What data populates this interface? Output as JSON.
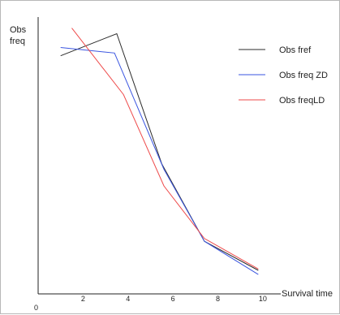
{
  "chart_data": {
    "type": "line",
    "ylabel_line1": "Obs",
    "ylabel_line2": "freq",
    "xlabel": "Survival time",
    "origin_label": "0",
    "x_ticks": [
      2,
      4,
      6,
      8,
      10
    ],
    "xlim": [
      0,
      10.8
    ],
    "ylim": [
      0,
      1.0
    ],
    "grid": false,
    "legend_position": "top-right",
    "series": [
      {
        "name": "Obs fref",
        "color": "#2b2b2b",
        "points": [
          [
            1.0,
            0.86
          ],
          [
            3.5,
            0.94
          ],
          [
            5.5,
            0.47
          ],
          [
            7.4,
            0.19
          ],
          [
            9.8,
            0.085
          ]
        ]
      },
      {
        "name": "Obs freq ZD",
        "color": "#3a55e0",
        "points": [
          [
            1.0,
            0.89
          ],
          [
            3.4,
            0.87
          ],
          [
            5.6,
            0.45
          ],
          [
            7.4,
            0.19
          ],
          [
            9.8,
            0.07
          ]
        ]
      },
      {
        "name": "Obs freqLD",
        "color": "#ee4a4a",
        "points": [
          [
            1.5,
            0.96
          ],
          [
            3.8,
            0.72
          ],
          [
            5.6,
            0.39
          ],
          [
            7.4,
            0.2
          ],
          [
            9.8,
            0.09
          ]
        ]
      }
    ]
  }
}
